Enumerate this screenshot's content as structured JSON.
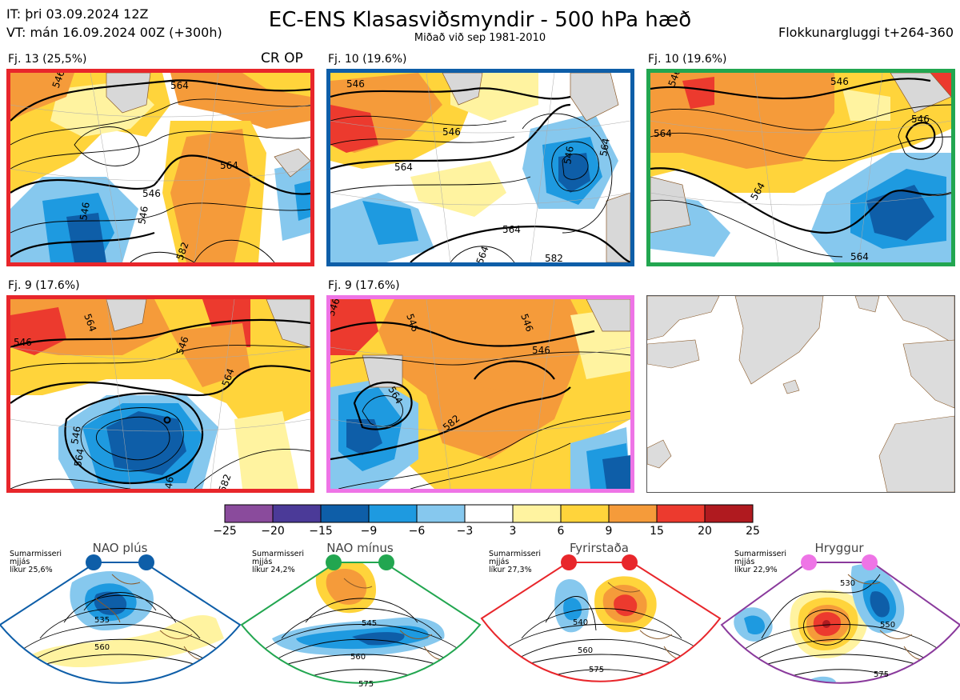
{
  "header": {
    "init_time": "IT: þri 03.09.2024 12Z",
    "valid_time": "VT: mán 16.09.2024 00Z  (+300h)",
    "title": "EC-ENS Klasasviðsmyndir - 500 hPa hæð",
    "subtitle": "Miðað við sep 1981-2010",
    "window": "Flokkunargluggi t+264-360"
  },
  "panels": [
    {
      "label": "Fj. 13 (25,5%)",
      "border": "#e8262b",
      "extra": "CR OP",
      "contours": [
        "546",
        "564",
        "546",
        "546",
        "564",
        "546",
        "582"
      ]
    },
    {
      "label": "Fj. 10 (19.6%)",
      "border": "#0e5ea8",
      "contours": [
        "546",
        "546",
        "564",
        "546",
        "564",
        "564",
        "564",
        "582"
      ]
    },
    {
      "label": "Fj. 10 (19.6%)",
      "border": "#22a650",
      "contours": [
        "546",
        "546",
        "564",
        "546",
        "564",
        "564"
      ]
    },
    {
      "label": "Fj. 9 (17.6%)",
      "border": "#e8262b",
      "contours": [
        "546",
        "564",
        "546",
        "546",
        "564",
        "564",
        "546",
        "582"
      ]
    },
    {
      "label": "Fj. 9 (17.6%)",
      "border": "#ee74e6",
      "contours": [
        "546",
        "546",
        "546",
        "546",
        "564",
        "582"
      ]
    }
  ],
  "colorbar": {
    "ticks": [
      "−25",
      "−20",
      "−15",
      "−9",
      "−6",
      "−3",
      "3",
      "6",
      "9",
      "15",
      "20",
      "25"
    ],
    "colors": [
      "#8a4b9c",
      "#4b3a98",
      "#0e5ea8",
      "#1e9ae0",
      "#86c8ee",
      "#ffffff",
      "#fff3a0",
      "#ffd43b",
      "#f59b3a",
      "#ec3a2e",
      "#b01a1f"
    ]
  },
  "regimes": [
    {
      "name": "NAO plús",
      "season": "Sumarmisseri",
      "spread": "mjjás",
      "prob": "líkur 25,6%",
      "color": "#0e5ea8",
      "contours": [
        "535",
        "560"
      ]
    },
    {
      "name": "NAO mínus",
      "season": "Sumarmisseri",
      "spread": "mjjás",
      "prob": "líkur 24,2%",
      "color": "#22a650",
      "contours": [
        "545",
        "560",
        "575"
      ]
    },
    {
      "name": "Fyrirstaða",
      "season": "Sumarmisseri",
      "spread": "mjjás",
      "prob": "líkur 27,3%",
      "color": "#e8262b",
      "contours": [
        "540",
        "560",
        "575"
      ]
    },
    {
      "name": "Hryggur",
      "season": "Sumarmisseri",
      "spread": "mjjás",
      "prob": "líkur 22,9%",
      "color": "#ee74e6",
      "contours": [
        "530",
        "550",
        "575"
      ]
    }
  ]
}
